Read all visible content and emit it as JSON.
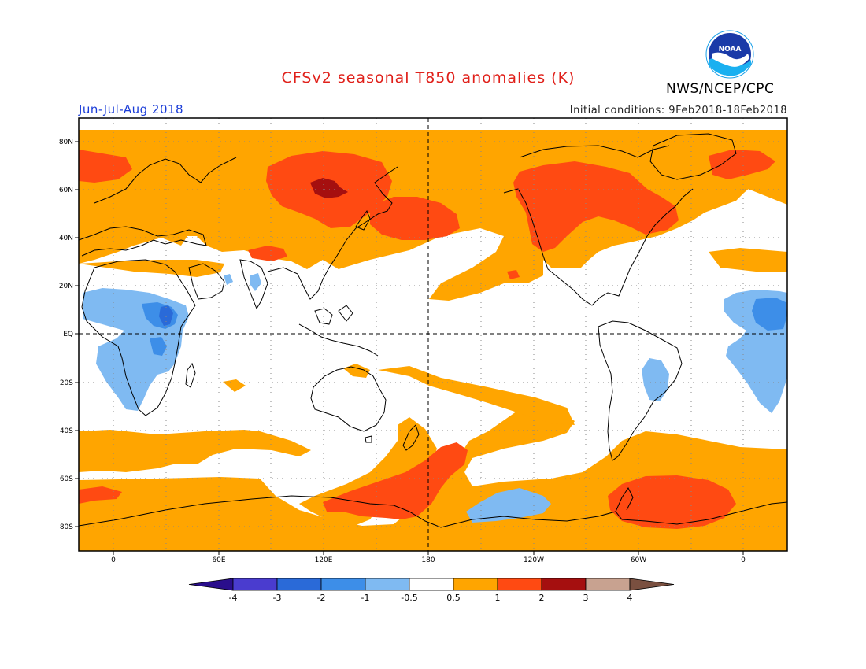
{
  "header": {
    "title": "CFSv2 seasonal T850 anomalies (K)",
    "agency": "NWS/NCEP/CPC",
    "logo_text": "NOAA",
    "period": "Jun-Jul-Aug 2018",
    "initial_conditions": "Initial conditions: 9Feb2018-18Feb2018"
  },
  "map": {
    "projection": "cylindrical equidistant",
    "center_longitude": 180,
    "lat_range": [
      -90,
      90
    ],
    "lat_labels": [
      "80N",
      "60N",
      "40N",
      "20N",
      "EQ",
      "20S",
      "40S",
      "60S",
      "80S"
    ],
    "lon_labels": [
      "0",
      "60E",
      "120E",
      "180",
      "120W",
      "60W",
      "0"
    ],
    "gridlines": true,
    "coastlines_color": "#000000",
    "field": "T850 anomaly",
    "units": "K"
  },
  "colorbar": {
    "levels": [
      "-4",
      "-3",
      "-2",
      "-1",
      "-0.5",
      "0.5",
      "1",
      "2",
      "3",
      "4"
    ],
    "colors": [
      "#2a0e8c",
      "#4a3ccf",
      "#2a6ad8",
      "#3d8ee8",
      "#7fbaf2",
      "#ffffff",
      "#ffa500",
      "#ff4a12",
      "#a50f0f",
      "#c8a290",
      "#7a5040"
    ]
  }
}
